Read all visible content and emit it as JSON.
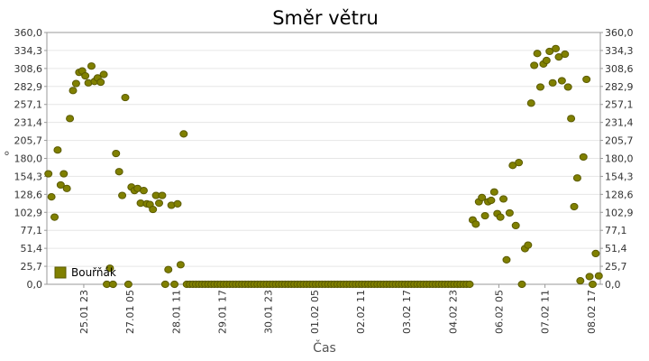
{
  "chart_data": {
    "type": "scatter",
    "title": "Směr větru",
    "xlabel": "Čas",
    "ylabel": "°",
    "ylim": [
      0,
      360
    ],
    "xlim": [
      "2023-01-24T23:00",
      "2023-02-08T23:00"
    ],
    "y_ticks": [
      "0,0",
      "25,7",
      "51,4",
      "77,1",
      "102,9",
      "128,6",
      "154,3",
      "180,0",
      "205,7",
      "231,4",
      "257,1",
      "282,9",
      "308,6",
      "334,3",
      "360,0"
    ],
    "x_ticks": [
      {
        "label": "25.01 23",
        "t": "2023-01-25T23:00"
      },
      {
        "label": "27.01 05",
        "t": "2023-01-27T05:00"
      },
      {
        "label": "28.01 11",
        "t": "2023-01-28T11:00"
      },
      {
        "label": "29.01 17",
        "t": "2023-01-29T17:00"
      },
      {
        "label": "30.01 23",
        "t": "2023-01-30T23:00"
      },
      {
        "label": "01.02 05",
        "t": "2023-02-01T05:00"
      },
      {
        "label": "02.02 11",
        "t": "2023-02-02T11:00"
      },
      {
        "label": "03.02 17",
        "t": "2023-02-03T17:00"
      },
      {
        "label": "04.02 23",
        "t": "2023-02-04T23:00"
      },
      {
        "label": "06.02 05",
        "t": "2023-02-06T05:00"
      },
      {
        "label": "07.02 11",
        "t": "2023-02-07T11:00"
      },
      {
        "label": "08.02 17",
        "t": "2023-02-08T17:00"
      }
    ],
    "grid": true,
    "legend_position": "bottom-left",
    "colors": {
      "marker": "#808000",
      "marker_edge": "#5a5a00",
      "grid": "#e6e6e6",
      "axis": "#999999"
    },
    "series": [
      {
        "name": "Bouřňák",
        "points": [
          {
            "t": "2023-01-25T00:00",
            "y": 158
          },
          {
            "t": "2023-01-25T02:00",
            "y": 125
          },
          {
            "t": "2023-01-25T04:00",
            "y": 96
          },
          {
            "t": "2023-01-25T06:00",
            "y": 192
          },
          {
            "t": "2023-01-25T08:00",
            "y": 142
          },
          {
            "t": "2023-01-25T10:00",
            "y": 158
          },
          {
            "t": "2023-01-25T12:00",
            "y": 137
          },
          {
            "t": "2023-01-25T14:00",
            "y": 237
          },
          {
            "t": "2023-01-25T16:00",
            "y": 277
          },
          {
            "t": "2023-01-25T18:00",
            "y": 287
          },
          {
            "t": "2023-01-25T20:00",
            "y": 303
          },
          {
            "t": "2023-01-25T22:00",
            "y": 305
          },
          {
            "t": "2023-01-26T00:00",
            "y": 298
          },
          {
            "t": "2023-01-26T02:00",
            "y": 288
          },
          {
            "t": "2023-01-26T04:00",
            "y": 312
          },
          {
            "t": "2023-01-26T06:00",
            "y": 290
          },
          {
            "t": "2023-01-26T08:00",
            "y": 295
          },
          {
            "t": "2023-01-26T10:00",
            "y": 289
          },
          {
            "t": "2023-01-26T12:00",
            "y": 300
          },
          {
            "t": "2023-01-26T14:00",
            "y": 0
          },
          {
            "t": "2023-01-26T16:00",
            "y": 23
          },
          {
            "t": "2023-01-26T18:00",
            "y": 0
          },
          {
            "t": "2023-01-26T20:00",
            "y": 187
          },
          {
            "t": "2023-01-26T22:00",
            "y": 161
          },
          {
            "t": "2023-01-27T00:00",
            "y": 127
          },
          {
            "t": "2023-01-27T02:00",
            "y": 267
          },
          {
            "t": "2023-01-27T04:00",
            "y": 0
          },
          {
            "t": "2023-01-27T06:00",
            "y": 139
          },
          {
            "t": "2023-01-27T08:00",
            "y": 134
          },
          {
            "t": "2023-01-27T10:00",
            "y": 137
          },
          {
            "t": "2023-01-27T12:00",
            "y": 116
          },
          {
            "t": "2023-01-27T14:00",
            "y": 134
          },
          {
            "t": "2023-01-27T16:00",
            "y": 115
          },
          {
            "t": "2023-01-27T18:00",
            "y": 114
          },
          {
            "t": "2023-01-27T20:00",
            "y": 107
          },
          {
            "t": "2023-01-27T22:00",
            "y": 127
          },
          {
            "t": "2023-01-28T00:00",
            "y": 116
          },
          {
            "t": "2023-01-28T02:00",
            "y": 127
          },
          {
            "t": "2023-01-28T04:00",
            "y": 0
          },
          {
            "t": "2023-01-28T06:00",
            "y": 21
          },
          {
            "t": "2023-01-28T08:00",
            "y": 113
          },
          {
            "t": "2023-01-28T10:00",
            "y": 0
          },
          {
            "t": "2023-01-28T12:00",
            "y": 115
          },
          {
            "t": "2023-01-28T14:00",
            "y": 28
          },
          {
            "t": "2023-01-28T16:00",
            "y": 215
          },
          {
            "t": "2023-01-28T18:00",
            "y": 0
          },
          {
            "t": "2023-01-28T20:00",
            "y": 0
          },
          {
            "t": "2023-01-28T22:00",
            "y": 0
          },
          {
            "t": "2023-01-29T00:00",
            "y": 0
          },
          {
            "t": "2023-01-29T02:00",
            "y": 0
          },
          {
            "t": "2023-01-29T04:00",
            "y": 0
          },
          {
            "t": "2023-01-29T06:00",
            "y": 0
          },
          {
            "t": "2023-01-29T08:00",
            "y": 0
          },
          {
            "t": "2023-01-29T10:00",
            "y": 0
          },
          {
            "t": "2023-01-29T12:00",
            "y": 0
          },
          {
            "t": "2023-01-29T14:00",
            "y": 0
          },
          {
            "t": "2023-01-29T16:00",
            "y": 0
          },
          {
            "t": "2023-01-29T18:00",
            "y": 0
          },
          {
            "t": "2023-01-29T20:00",
            "y": 0
          },
          {
            "t": "2023-01-29T22:00",
            "y": 0
          },
          {
            "t": "2023-01-30T00:00",
            "y": 0
          },
          {
            "t": "2023-01-30T02:00",
            "y": 0
          },
          {
            "t": "2023-01-30T04:00",
            "y": 0
          },
          {
            "t": "2023-01-30T06:00",
            "y": 0
          },
          {
            "t": "2023-01-30T08:00",
            "y": 0
          },
          {
            "t": "2023-01-30T10:00",
            "y": 0
          },
          {
            "t": "2023-01-30T12:00",
            "y": 0
          },
          {
            "t": "2023-01-30T14:00",
            "y": 0
          },
          {
            "t": "2023-01-30T16:00",
            "y": 0
          },
          {
            "t": "2023-01-30T18:00",
            "y": 0
          },
          {
            "t": "2023-01-30T20:00",
            "y": 0
          },
          {
            "t": "2023-01-30T22:00",
            "y": 0
          },
          {
            "t": "2023-01-31T00:00",
            "y": 0
          },
          {
            "t": "2023-01-31T02:00",
            "y": 0
          },
          {
            "t": "2023-01-31T04:00",
            "y": 0
          },
          {
            "t": "2023-01-31T06:00",
            "y": 0
          },
          {
            "t": "2023-01-31T08:00",
            "y": 0
          },
          {
            "t": "2023-01-31T10:00",
            "y": 0
          },
          {
            "t": "2023-01-31T12:00",
            "y": 0
          },
          {
            "t": "2023-01-31T14:00",
            "y": 0
          },
          {
            "t": "2023-01-31T16:00",
            "y": 0
          },
          {
            "t": "2023-01-31T18:00",
            "y": 0
          },
          {
            "t": "2023-01-31T20:00",
            "y": 0
          },
          {
            "t": "2023-01-31T22:00",
            "y": 0
          },
          {
            "t": "2023-02-01T00:00",
            "y": 0
          },
          {
            "t": "2023-02-01T02:00",
            "y": 0
          },
          {
            "t": "2023-02-01T04:00",
            "y": 0
          },
          {
            "t": "2023-02-01T06:00",
            "y": 0
          },
          {
            "t": "2023-02-01T08:00",
            "y": 0
          },
          {
            "t": "2023-02-01T10:00",
            "y": 0
          },
          {
            "t": "2023-02-01T12:00",
            "y": 0
          },
          {
            "t": "2023-02-01T14:00",
            "y": 0
          },
          {
            "t": "2023-02-01T16:00",
            "y": 0
          },
          {
            "t": "2023-02-01T18:00",
            "y": 0
          },
          {
            "t": "2023-02-01T20:00",
            "y": 0
          },
          {
            "t": "2023-02-01T22:00",
            "y": 0
          },
          {
            "t": "2023-02-02T00:00",
            "y": 0
          },
          {
            "t": "2023-02-02T02:00",
            "y": 0
          },
          {
            "t": "2023-02-02T04:00",
            "y": 0
          },
          {
            "t": "2023-02-02T06:00",
            "y": 0
          },
          {
            "t": "2023-02-02T08:00",
            "y": 0
          },
          {
            "t": "2023-02-02T10:00",
            "y": 0
          },
          {
            "t": "2023-02-02T12:00",
            "y": 0
          },
          {
            "t": "2023-02-02T14:00",
            "y": 0
          },
          {
            "t": "2023-02-02T16:00",
            "y": 0
          },
          {
            "t": "2023-02-02T18:00",
            "y": 0
          },
          {
            "t": "2023-02-02T20:00",
            "y": 0
          },
          {
            "t": "2023-02-02T22:00",
            "y": 0
          },
          {
            "t": "2023-02-03T00:00",
            "y": 0
          },
          {
            "t": "2023-02-03T02:00",
            "y": 0
          },
          {
            "t": "2023-02-03T04:00",
            "y": 0
          },
          {
            "t": "2023-02-03T06:00",
            "y": 0
          },
          {
            "t": "2023-02-03T08:00",
            "y": 0
          },
          {
            "t": "2023-02-03T10:00",
            "y": 0
          },
          {
            "t": "2023-02-03T12:00",
            "y": 0
          },
          {
            "t": "2023-02-03T14:00",
            "y": 0
          },
          {
            "t": "2023-02-03T16:00",
            "y": 0
          },
          {
            "t": "2023-02-03T18:00",
            "y": 0
          },
          {
            "t": "2023-02-03T20:00",
            "y": 0
          },
          {
            "t": "2023-02-03T22:00",
            "y": 0
          },
          {
            "t": "2023-02-04T00:00",
            "y": 0
          },
          {
            "t": "2023-02-04T02:00",
            "y": 0
          },
          {
            "t": "2023-02-04T04:00",
            "y": 0
          },
          {
            "t": "2023-02-04T06:00",
            "y": 0
          },
          {
            "t": "2023-02-04T08:00",
            "y": 0
          },
          {
            "t": "2023-02-04T10:00",
            "y": 0
          },
          {
            "t": "2023-02-04T12:00",
            "y": 0
          },
          {
            "t": "2023-02-04T14:00",
            "y": 0
          },
          {
            "t": "2023-02-04T16:00",
            "y": 0
          },
          {
            "t": "2023-02-04T18:00",
            "y": 0
          },
          {
            "t": "2023-02-04T20:00",
            "y": 0
          },
          {
            "t": "2023-02-04T22:00",
            "y": 0
          },
          {
            "t": "2023-02-05T00:00",
            "y": 0
          },
          {
            "t": "2023-02-05T02:00",
            "y": 0
          },
          {
            "t": "2023-02-05T04:00",
            "y": 0
          },
          {
            "t": "2023-02-05T06:00",
            "y": 0
          },
          {
            "t": "2023-02-05T08:00",
            "y": 0
          },
          {
            "t": "2023-02-05T10:00",
            "y": 0
          },
          {
            "t": "2023-02-05T12:00",
            "y": 92
          },
          {
            "t": "2023-02-05T14:00",
            "y": 86
          },
          {
            "t": "2023-02-05T16:00",
            "y": 118
          },
          {
            "t": "2023-02-05T18:00",
            "y": 124
          },
          {
            "t": "2023-02-05T20:00",
            "y": 98
          },
          {
            "t": "2023-02-05T22:00",
            "y": 118
          },
          {
            "t": "2023-02-06T00:00",
            "y": 120
          },
          {
            "t": "2023-02-06T02:00",
            "y": 132
          },
          {
            "t": "2023-02-06T04:00",
            "y": 101
          },
          {
            "t": "2023-02-06T06:00",
            "y": 96
          },
          {
            "t": "2023-02-06T08:00",
            "y": 122
          },
          {
            "t": "2023-02-06T10:00",
            "y": 35
          },
          {
            "t": "2023-02-06T12:00",
            "y": 102
          },
          {
            "t": "2023-02-06T14:00",
            "y": 170
          },
          {
            "t": "2023-02-06T16:00",
            "y": 84
          },
          {
            "t": "2023-02-06T18:00",
            "y": 174
          },
          {
            "t": "2023-02-06T20:00",
            "y": 0
          },
          {
            "t": "2023-02-06T22:00",
            "y": 51
          },
          {
            "t": "2023-02-07T00:00",
            "y": 56
          },
          {
            "t": "2023-02-07T02:00",
            "y": 259
          },
          {
            "t": "2023-02-07T04:00",
            "y": 313
          },
          {
            "t": "2023-02-07T06:00",
            "y": 330
          },
          {
            "t": "2023-02-07T08:00",
            "y": 282
          },
          {
            "t": "2023-02-07T10:00",
            "y": 315
          },
          {
            "t": "2023-02-07T12:00",
            "y": 320
          },
          {
            "t": "2023-02-07T14:00",
            "y": 333
          },
          {
            "t": "2023-02-07T16:00",
            "y": 288
          },
          {
            "t": "2023-02-07T18:00",
            "y": 337
          },
          {
            "t": "2023-02-07T20:00",
            "y": 325
          },
          {
            "t": "2023-02-07T22:00",
            "y": 291
          },
          {
            "t": "2023-02-08T00:00",
            "y": 329
          },
          {
            "t": "2023-02-08T02:00",
            "y": 282
          },
          {
            "t": "2023-02-08T04:00",
            "y": 237
          },
          {
            "t": "2023-02-08T06:00",
            "y": 111
          },
          {
            "t": "2023-02-08T08:00",
            "y": 152
          },
          {
            "t": "2023-02-08T10:00",
            "y": 5
          },
          {
            "t": "2023-02-08T12:00",
            "y": 182
          },
          {
            "t": "2023-02-08T14:00",
            "y": 293
          },
          {
            "t": "2023-02-08T16:00",
            "y": 11
          },
          {
            "t": "2023-02-08T18:00",
            "y": 0
          },
          {
            "t": "2023-02-08T20:00",
            "y": 44
          },
          {
            "t": "2023-02-08T22:00",
            "y": 12
          }
        ]
      }
    ]
  }
}
